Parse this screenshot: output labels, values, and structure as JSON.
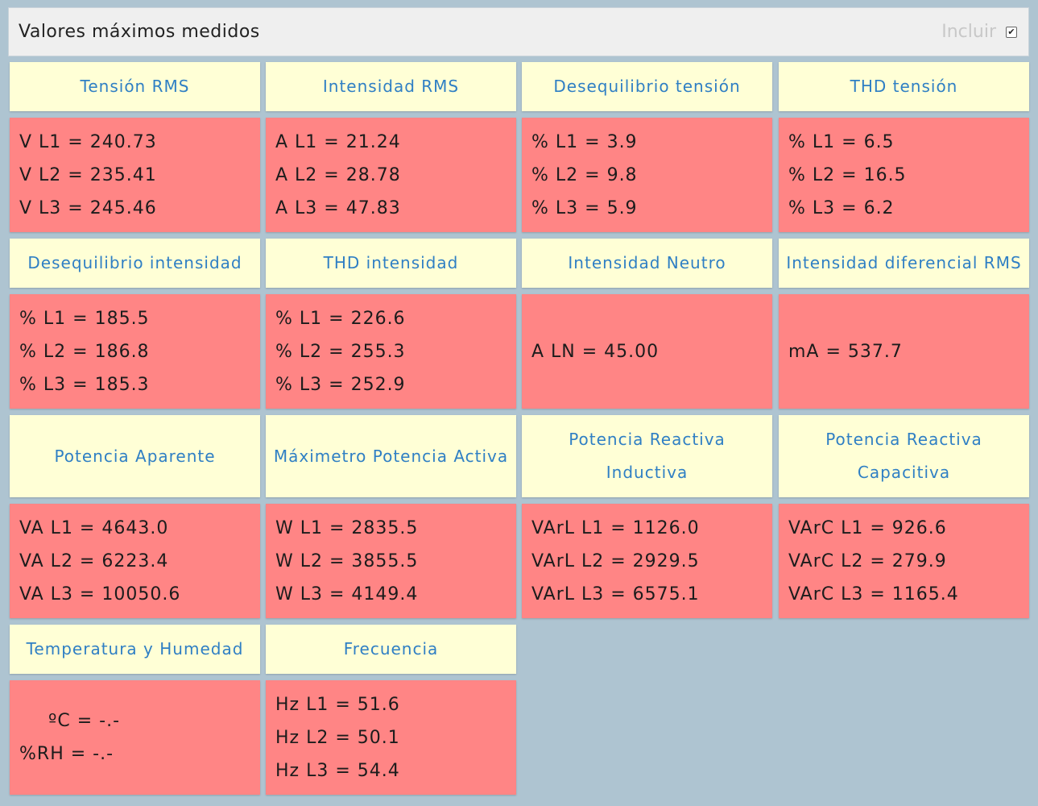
{
  "header": {
    "title": "Valores máximos medidos",
    "include_label": "Incluir",
    "include_checked": true,
    "checkmark": "✔"
  },
  "cards": [
    {
      "title": "Tensión RMS",
      "values": [
        "V L1 = 240.73",
        "V L2 = 235.41",
        "V L3 = 245.46"
      ]
    },
    {
      "title": "Intensidad RMS",
      "values": [
        "A L1 = 21.24",
        "A L2 = 28.78",
        "A L3 = 47.83"
      ]
    },
    {
      "title": "Desequilibrio tensión",
      "values": [
        "% L1 = 3.9",
        "% L2 = 9.8",
        "% L3 = 5.9"
      ]
    },
    {
      "title": "THD tensión",
      "values": [
        "% L1 = 6.5",
        "% L2 = 16.5",
        "% L3 = 6.2"
      ]
    },
    {
      "title": "Desequilibrio intensidad",
      "values": [
        "% L1 = 185.5",
        "% L2 = 186.8",
        "% L3 = 185.3"
      ]
    },
    {
      "title": "THD intensidad",
      "values": [
        "% L1 = 226.6",
        "% L2 = 255.3",
        "% L3 = 252.9"
      ]
    },
    {
      "title": "Intensidad Neutro",
      "values": [
        "A LN = 45.00"
      ]
    },
    {
      "title": "Intensidad diferencial RMS",
      "values": [
        "mA = 537.7"
      ]
    },
    {
      "title": "Potencia Aparente",
      "values": [
        "VA L1 = 4643.0",
        "VA L2 = 6223.4",
        "VA L3 = 10050.6"
      ]
    },
    {
      "title": "Máximetro Potencia Activa",
      "values": [
        "W L1 = 2835.5",
        "W L2 = 3855.5",
        "W L3 = 4149.4"
      ]
    },
    {
      "title": "Potencia Reactiva Inductiva",
      "values": [
        "VArL L1 = 1126.0",
        "VArL L2 = 2929.5",
        "VArL L3 = 6575.1"
      ]
    },
    {
      "title_lines": [
        "Potencia Reactiva",
        "Capacitiva"
      ],
      "values": [
        "VArC L1 = 926.6",
        "VArC L2 = 279.9",
        "VArC L3 = 1165.4"
      ]
    },
    {
      "title": "Temperatura y Humedad",
      "values": [
        "ºC = -.-",
        "%RH = -.-"
      ]
    },
    {
      "title": "Frecuencia",
      "values": [
        "Hz L1 = 51.6",
        "Hz L2 = 50.1",
        "Hz L3 = 54.4"
      ]
    }
  ],
  "colors": {
    "background": "#aec4d1",
    "title_bg": "#ffffd6",
    "title_text": "#2f7fc4",
    "value_bg": "#ff8585",
    "value_text": "#1c1c1c"
  }
}
